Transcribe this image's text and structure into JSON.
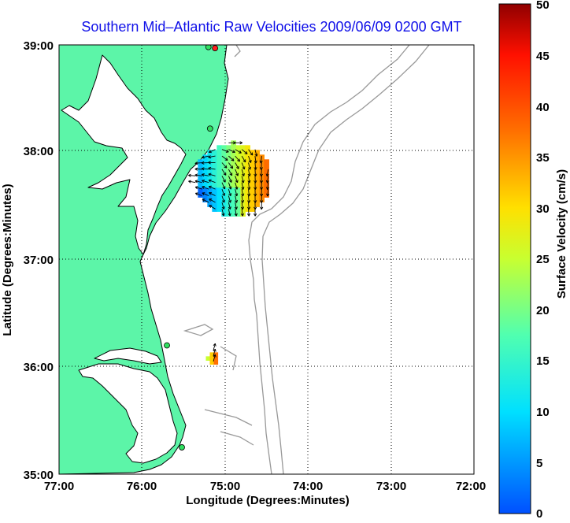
{
  "title": "Southern Mid–Atlantic Raw Velocities 2009/06/09 0200 GMT",
  "x_axis": {
    "label": "Longitude (Degrees:Minutes)",
    "ticks": [
      "77:00",
      "76:00",
      "75:00",
      "74:00",
      "73:00",
      "72:00"
    ]
  },
  "y_axis": {
    "label": "Latitude (Degrees:Minutes)",
    "ticks": [
      "39:00",
      "38:00",
      "37:00",
      "36:00",
      "35:00"
    ]
  },
  "colorbar": {
    "label": "Surface Velocity (cm/s)",
    "ticks": [
      "50",
      "45",
      "40",
      "35",
      "30",
      "25",
      "20",
      "15",
      "10",
      "5",
      "0"
    ],
    "range": [
      0,
      50
    ],
    "colormap": "jet"
  },
  "map": {
    "lon_range": [
      -77,
      -72
    ],
    "lat_range": [
      35,
      39
    ],
    "land_color": "#5cf5a8",
    "grid": "dotted",
    "stations": [
      {
        "lon": -75.12,
        "lat": 38.97,
        "color": "#ff2020"
      },
      {
        "lon": -75.2,
        "lat": 38.98,
        "color": "#30e060"
      },
      {
        "lon": -75.18,
        "lat": 38.22,
        "color": "#30e060"
      },
      {
        "lon": -75.7,
        "lat": 36.2,
        "color": "#30e060"
      },
      {
        "lon": -75.52,
        "lat": 35.25,
        "color": "#30e060"
      }
    ]
  },
  "chart_data": {
    "type": "vector-field-map",
    "x_range": [
      -77,
      -72
    ],
    "y_range": [
      35,
      39
    ],
    "value_range": [
      0,
      50
    ],
    "vector_groups": [
      {
        "center_lon": -74.9,
        "center_lat": 37.75,
        "speed_range": [
          3,
          40
        ]
      },
      {
        "center_lon": -75.15,
        "center_lat": 36.08,
        "speed_range": [
          25,
          40
        ]
      }
    ]
  }
}
